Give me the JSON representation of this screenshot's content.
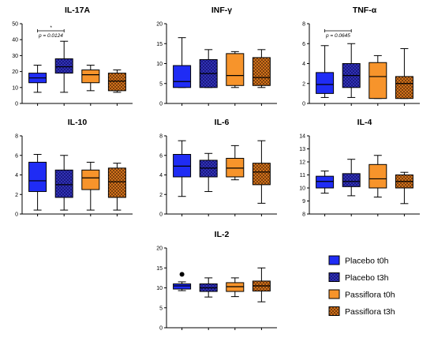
{
  "colors": {
    "placebo_t0h": "#1f2cf5",
    "placebo_t3h": "#14147a",
    "passiflora_t0h": "#f7942b",
    "passiflora_t3h": "#e07a1e",
    "crosshatch_on_dark": "#1a1a5e",
    "crosshatch_on_orange": "#5a2c07"
  },
  "legend": {
    "items": [
      {
        "label": "Placebo t0h",
        "pattern": "solid",
        "color": "#1f2cf5"
      },
      {
        "label": "Placebo t3h",
        "pattern": "hatch",
        "color": "#14147a"
      },
      {
        "label": "Passiflora t0h",
        "pattern": "solid",
        "color": "#f7942b"
      },
      {
        "label": "Passiflora t3h",
        "pattern": "hatch",
        "color": "#e07a1e"
      }
    ],
    "placement": "bottom-right"
  },
  "chart_data": [
    {
      "type": "box",
      "title": "IL-17A",
      "ylim": [
        0,
        50
      ],
      "yticks": [
        "0",
        "10",
        "20",
        "30",
        "40",
        "50"
      ],
      "series": [
        {
          "group": "Placebo t0h",
          "whisker_low": 7,
          "q1": 13,
          "median": 16,
          "q3": 19,
          "whisker_high": 24
        },
        {
          "group": "Placebo t3h",
          "whisker_low": 7,
          "q1": 19,
          "median": 23,
          "q3": 28,
          "whisker_high": 39
        },
        {
          "group": "Passiflora t0h",
          "whisker_low": 8,
          "q1": 13,
          "median": 18,
          "q3": 21,
          "whisker_high": 24
        },
        {
          "group": "Passiflora t3h",
          "whisker_low": 7,
          "q1": 8,
          "median": 14,
          "q3": 19,
          "whisker_high": 21
        }
      ],
      "annotations": [
        {
          "text": "*",
          "between": [
            0,
            1
          ]
        },
        {
          "text": "p = 0.0124",
          "between": [
            0,
            1
          ]
        }
      ]
    },
    {
      "type": "box",
      "title": "INF-γ",
      "ylim": [
        0,
        20
      ],
      "yticks": [
        "0",
        "5",
        "10",
        "15",
        "20"
      ],
      "series": [
        {
          "group": "Placebo t0h",
          "whisker_low": 4,
          "q1": 4,
          "median": 5.5,
          "q3": 9.5,
          "whisker_high": 16.5
        },
        {
          "group": "Placebo t3h",
          "whisker_low": 4,
          "q1": 4,
          "median": 7.5,
          "q3": 11,
          "whisker_high": 13.5
        },
        {
          "group": "Passiflora t0h",
          "whisker_low": 4,
          "q1": 4.5,
          "median": 7,
          "q3": 12.5,
          "whisker_high": 13
        },
        {
          "group": "Passiflora t3h",
          "whisker_low": 4,
          "q1": 4.5,
          "median": 6.5,
          "q3": 11.5,
          "whisker_high": 13.5
        }
      ]
    },
    {
      "type": "box",
      "title": "TNF-α",
      "ylim": [
        0,
        8
      ],
      "yticks": [
        "0",
        "2",
        "4",
        "6",
        "8"
      ],
      "series": [
        {
          "group": "Placebo t0h",
          "whisker_low": 0.6,
          "q1": 1,
          "median": 1.9,
          "q3": 3.1,
          "whisker_high": 5.8
        },
        {
          "group": "Placebo t3h",
          "whisker_low": 0.6,
          "q1": 1.6,
          "median": 2.8,
          "q3": 4,
          "whisker_high": 6
        },
        {
          "group": "Passiflora t0h",
          "whisker_low": 0.5,
          "q1": 0.5,
          "median": 2.7,
          "q3": 4.1,
          "whisker_high": 4.8
        },
        {
          "group": "Passiflora t3h",
          "whisker_low": 0.5,
          "q1": 0.5,
          "median": 2,
          "q3": 2.7,
          "whisker_high": 5.5
        }
      ],
      "annotations": [
        {
          "text": "p = 0.0645",
          "between": [
            0,
            1
          ]
        }
      ]
    },
    {
      "type": "box",
      "title": "IL-10",
      "ylim": [
        0,
        8
      ],
      "yticks": [
        "0",
        "2",
        "4",
        "6",
        "8"
      ],
      "series": [
        {
          "group": "Placebo t0h",
          "whisker_low": 0.4,
          "q1": 2.3,
          "median": 3.4,
          "q3": 5.3,
          "whisker_high": 6.1
        },
        {
          "group": "Placebo t3h",
          "whisker_low": 0.4,
          "q1": 1.7,
          "median": 3,
          "q3": 4.5,
          "whisker_high": 6
        },
        {
          "group": "Passiflora t0h",
          "whisker_low": 0.4,
          "q1": 2.5,
          "median": 3.7,
          "q3": 4.5,
          "whisker_high": 5.3
        },
        {
          "group": "Passiflora t3h",
          "whisker_low": 0.4,
          "q1": 1.7,
          "median": 3.3,
          "q3": 4.7,
          "whisker_high": 5.2
        }
      ]
    },
    {
      "type": "box",
      "title": "IL-6",
      "ylim": [
        0,
        8
      ],
      "yticks": [
        "0",
        "2",
        "4",
        "6",
        "8"
      ],
      "series": [
        {
          "group": "Placebo t0h",
          "whisker_low": 1.8,
          "q1": 3.8,
          "median": 4.9,
          "q3": 6.1,
          "whisker_high": 7.5
        },
        {
          "group": "Placebo t3h",
          "whisker_low": 2.3,
          "q1": 3.8,
          "median": 4.7,
          "q3": 5.5,
          "whisker_high": 6.2
        },
        {
          "group": "Passiflora t0h",
          "whisker_low": 3.5,
          "q1": 3.8,
          "median": 4.7,
          "q3": 5.7,
          "whisker_high": 7
        },
        {
          "group": "Passiflora t3h",
          "whisker_low": 1.1,
          "q1": 3,
          "median": 4.3,
          "q3": 5.2,
          "whisker_high": 7.5
        }
      ]
    },
    {
      "type": "box",
      "title": "IL-4",
      "ylim": [
        8,
        14
      ],
      "yticks": [
        "8",
        "9",
        "10",
        "11",
        "12",
        "13",
        "14"
      ],
      "series": [
        {
          "group": "Placebo t0h",
          "whisker_low": 9.6,
          "q1": 10,
          "median": 10.5,
          "q3": 10.9,
          "whisker_high": 11.3
        },
        {
          "group": "Placebo t3h",
          "whisker_low": 9.4,
          "q1": 10.1,
          "median": 10.5,
          "q3": 11.1,
          "whisker_high": 12.2
        },
        {
          "group": "Passiflora t0h",
          "whisker_low": 9.3,
          "q1": 10,
          "median": 10.7,
          "q3": 11.8,
          "whisker_high": 12.5
        },
        {
          "group": "Passiflora t3h",
          "whisker_low": 8.8,
          "q1": 10,
          "median": 10.5,
          "q3": 11,
          "whisker_high": 11.2
        }
      ]
    },
    {
      "type": "box",
      "title": "IL-2",
      "ylim": [
        0,
        20
      ],
      "yticks": [
        "0",
        "5",
        "10",
        "15",
        "20"
      ],
      "series": [
        {
          "group": "Placebo t0h",
          "whisker_low": 9.3,
          "q1": 9.7,
          "median": 10.5,
          "q3": 11,
          "whisker_high": 11.5,
          "outliers": [
            13.4
          ]
        },
        {
          "group": "Placebo t3h",
          "whisker_low": 7.7,
          "q1": 9.1,
          "median": 10,
          "q3": 11,
          "whisker_high": 12.5
        },
        {
          "group": "Passiflora t0h",
          "whisker_low": 7.8,
          "q1": 9.1,
          "median": 10.3,
          "q3": 11.3,
          "whisker_high": 12.5
        },
        {
          "group": "Passiflora t3h",
          "whisker_low": 6.5,
          "q1": 9.2,
          "median": 10.5,
          "q3": 11.7,
          "whisker_high": 15
        }
      ]
    }
  ]
}
